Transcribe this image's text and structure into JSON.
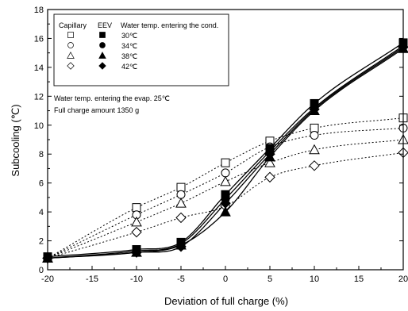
{
  "chart_data": {
    "type": "scatter",
    "xlabel": "Deviation of full charge (%)",
    "ylabel": "Subcooling (℃)",
    "xlim": [
      -20,
      20
    ],
    "ylim": [
      0,
      18
    ],
    "xticks": [
      -20,
      -15,
      -10,
      -5,
      0,
      5,
      10,
      15,
      20
    ],
    "yticks": [
      0,
      2,
      4,
      6,
      8,
      10,
      12,
      14,
      16,
      18
    ],
    "grid": false,
    "legend": {
      "placement": "top-left",
      "headers": [
        "Capillary",
        "EEV",
        "Water temp. entering the cond."
      ],
      "entries": [
        "30℃",
        "34℃",
        "38℃",
        "42℃"
      ],
      "capillary_markers": [
        "open-square",
        "open-circle",
        "open-triangle",
        "open-diamond"
      ],
      "eev_markers": [
        "filled-square",
        "filled-circle",
        "filled-triangle",
        "filled-diamond"
      ]
    },
    "annotations": [
      "Water temp. entering the evap. 25℃",
      "Full charge amount  1350 g"
    ],
    "series": [
      {
        "name": "Capillary 30℃",
        "marker": "open-square",
        "line": "dotted",
        "x": [
          -20,
          -10,
          -5,
          0,
          5,
          10,
          20
        ],
        "y": [
          0.8,
          4.3,
          5.7,
          7.4,
          8.9,
          9.8,
          10.5
        ]
      },
      {
        "name": "Capillary 34℃",
        "marker": "open-circle",
        "line": "dotted",
        "x": [
          -20,
          -10,
          -5,
          0,
          5,
          10,
          20
        ],
        "y": [
          0.8,
          3.8,
          5.2,
          6.7,
          8.5,
          9.3,
          9.8
        ]
      },
      {
        "name": "Capillary 38℃",
        "marker": "open-triangle",
        "line": "dotted",
        "x": [
          -20,
          -10,
          -5,
          0,
          5,
          10,
          20
        ],
        "y": [
          0.8,
          3.3,
          4.6,
          6.1,
          7.4,
          8.3,
          9.0
        ]
      },
      {
        "name": "Capillary 42℃",
        "marker": "open-diamond",
        "line": "dotted",
        "x": [
          -20,
          -10,
          -5,
          0,
          5,
          10,
          20
        ],
        "y": [
          0.8,
          2.6,
          3.6,
          4.4,
          6.4,
          7.2,
          8.1
        ]
      },
      {
        "name": "EEV 30℃",
        "marker": "filled-square",
        "line": "solid",
        "x": [
          -20,
          -10,
          -5,
          0,
          5,
          10,
          20
        ],
        "y": [
          0.9,
          1.4,
          1.9,
          5.2,
          8.4,
          11.5,
          15.7
        ]
      },
      {
        "name": "EEV 34℃",
        "marker": "filled-circle",
        "line": "solid",
        "x": [
          -20,
          -10,
          -5,
          0,
          5,
          10,
          20
        ],
        "y": [
          0.8,
          1.3,
          1.8,
          4.9,
          8.2,
          11.2,
          15.5
        ]
      },
      {
        "name": "EEV 38℃",
        "marker": "filled-triangle",
        "line": "solid",
        "x": [
          -20,
          -10,
          -5,
          0,
          5,
          10,
          20
        ],
        "y": [
          0.8,
          1.2,
          1.7,
          4.0,
          7.8,
          11.0,
          15.3
        ]
      },
      {
        "name": "EEV 42℃",
        "marker": "filled-diamond",
        "line": "solid",
        "x": [
          -20,
          -10,
          -5,
          0,
          5,
          10,
          20
        ],
        "y": [
          0.8,
          1.2,
          1.6,
          4.6,
          8.0,
          11.1,
          15.4
        ]
      }
    ]
  }
}
